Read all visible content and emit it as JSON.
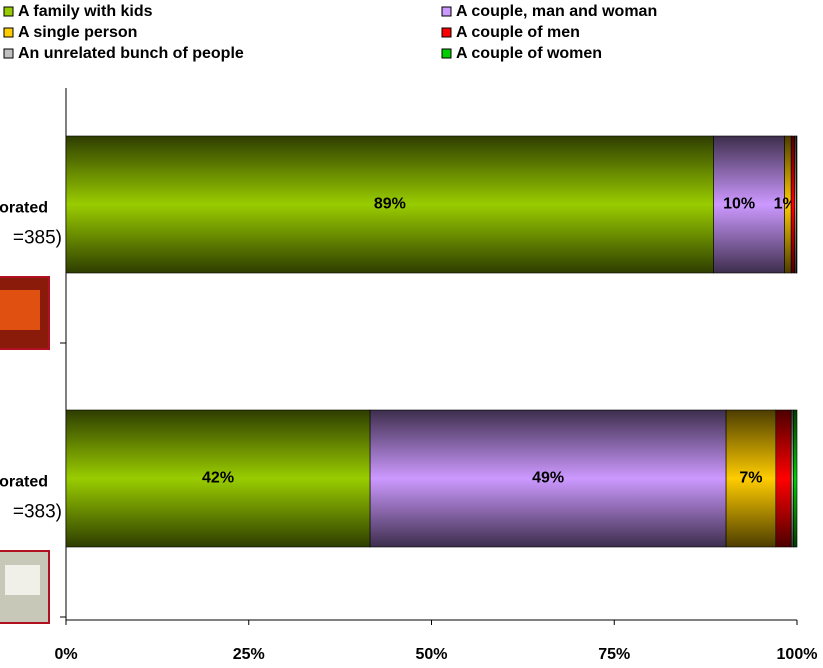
{
  "chart_data": {
    "type": "stacked-bar-horizontal",
    "categories": [
      [
        "orated",
        "=385)"
      ],
      [
        "orated",
        "=383)"
      ]
    ],
    "series": [
      {
        "name": "A family with kids",
        "color": "#99cc00",
        "values": [
          88.6,
          41.6
        ],
        "value_labels": [
          "89%",
          "42%"
        ]
      },
      {
        "name": "A couple, man and woman",
        "color": "#cc99ff",
        "values": [
          9.7,
          48.7
        ],
        "value_labels": [
          "10%",
          "49%"
        ]
      },
      {
        "name": "A single person",
        "color": "#ffcc00",
        "values": [
          0.9,
          6.8
        ],
        "value_labels": [
          "1%",
          "7%"
        ]
      },
      {
        "name": "A couple of men",
        "color": "#ff0000",
        "values": [
          0.5,
          2.1
        ],
        "value_labels": [
          null,
          null
        ]
      },
      {
        "name": "An unrelated bunch of people",
        "color": "#c0c0c0",
        "values": [
          0.2,
          0.3
        ],
        "value_labels": [
          null,
          null
        ]
      },
      {
        "name": "A couple of women",
        "color": "#00cc00",
        "values": [
          0.1,
          0.5
        ],
        "value_labels": [
          null,
          null
        ]
      }
    ],
    "xlim": [
      0,
      100
    ],
    "xticks": [
      {
        "value": 0,
        "label": "0%"
      },
      {
        "value": 25,
        "label": "25%"
      },
      {
        "value": 50,
        "label": "50%"
      },
      {
        "value": 75,
        "label": "75%"
      },
      {
        "value": 100,
        "label": "100%"
      }
    ]
  }
}
